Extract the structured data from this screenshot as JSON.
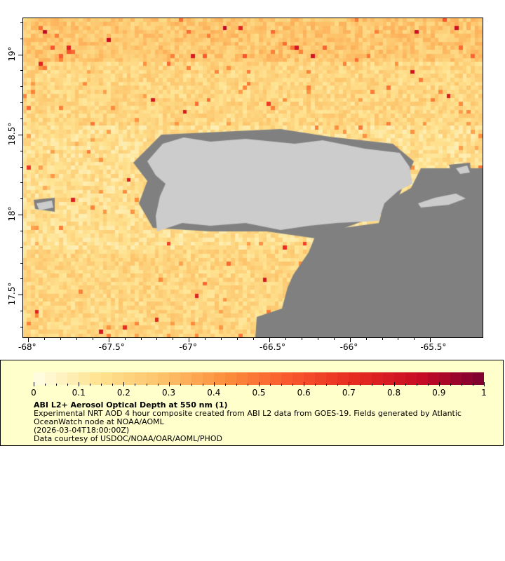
{
  "map": {
    "lon_ticks": [
      "-68°",
      "-67.5°",
      "-67°",
      "-66.5°",
      "-66°",
      "-65.5°"
    ],
    "lat_ticks": [
      "19°",
      "18.5°",
      "18°",
      "17.5°"
    ],
    "lon_range": [
      -68.035,
      -65.17
    ],
    "lat_range": [
      17.23,
      19.23
    ],
    "land_color": "#cccccc",
    "nodata_color": "#808080"
  },
  "colorbar": {
    "min": 0,
    "max": 1,
    "labels": [
      "0",
      "0.1",
      "0.2",
      "0.3",
      "0.4",
      "0.5",
      "0.6",
      "0.7",
      "0.8",
      "0.9",
      "1"
    ],
    "colors": [
      "#fffee6",
      "#fee391",
      "#fdc36a",
      "#fc8d3c",
      "#f8572d",
      "#e62a21",
      "#c80c24",
      "#7a0030"
    ]
  },
  "legend": {
    "title": "ABI L2+ Aerosol Optical Depth at 550 nm (1)",
    "line1": "Experimental NRT AOD 4 hour composite created from ABI L2 data from GOES-19. Fields generated by Atlantic",
    "line2": "OceanWatch node at NOAA/AOML",
    "line3": "(2026-03-04T18:00:00Z)",
    "line4": "Data courtesy of USDOC/NOAA/OAR/AOML/PHOD"
  }
}
